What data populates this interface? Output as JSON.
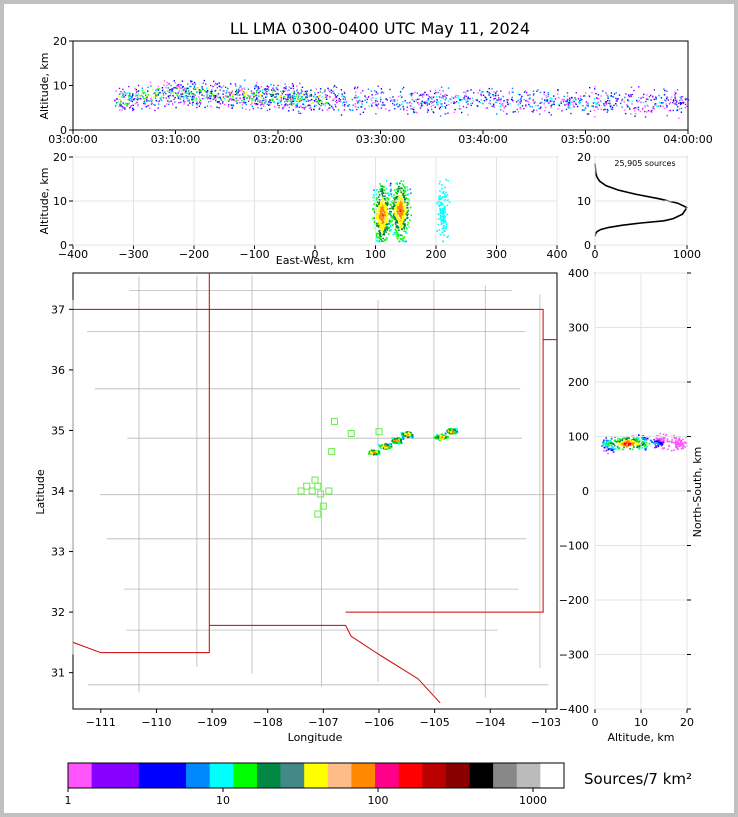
{
  "title": "LL LMA 0300-0400 UTC May 11, 2024",
  "source_count_label": "25,905 sources",
  "colorbar_label": "Sources/7 km²",
  "colorbar": {
    "tick_labels": [
      "1",
      "10",
      "100",
      "1000"
    ],
    "colors": [
      "#ff55ff",
      "#8800ff",
      "#8800ff",
      "#0000ff",
      "#0000ff",
      "#0088ff",
      "#00ffff",
      "#00ff00",
      "#008844",
      "#448888",
      "#ffff00",
      "#ffbb88",
      "#ff8800",
      "#ff0088",
      "#ff0000",
      "#bb0000",
      "#880000",
      "#000000",
      "#888888",
      "#bbbbbb",
      "#ffffff"
    ]
  },
  "chart_data": [
    {
      "id": "time_height",
      "type": "scatter",
      "xlabel": "",
      "ylabel": "Altitude, km",
      "xlim": [
        "03:00:00",
        "04:00:00"
      ],
      "ylim": [
        0,
        20
      ],
      "xtick_labels": [
        "03:00:00",
        "03:10:00",
        "03:20:00",
        "03:30:00",
        "03:40:00",
        "03:50:00",
        "04:00:00"
      ],
      "ytick_labels": [
        "0",
        "10",
        "20"
      ],
      "series": [
        {
          "x": [
            "03:04:00",
            "03:10:00",
            "03:15:00",
            "03:20:00",
            "03:25:00",
            "03:30:00",
            "03:35:00",
            "03:40:00",
            "03:45:00",
            "03:50:00",
            "03:55:00",
            "04:00:00"
          ],
          "y": [
            7,
            8.5,
            8,
            7.5,
            7,
            6.8,
            6.5,
            7,
            6.5,
            6.5,
            6.5,
            6.5
          ]
        }
      ]
    },
    {
      "id": "ew_height",
      "type": "scatter",
      "xlabel": "East-West, km",
      "ylabel": "Altitude, km",
      "xlim": [
        -400,
        400
      ],
      "ylim": [
        0,
        20
      ],
      "xtick_labels": [
        "−400",
        "−300",
        "−200",
        "−100",
        "0",
        "100",
        "200",
        "300",
        "400"
      ],
      "ytick_labels": [
        "0",
        "10",
        "20"
      ],
      "series": [
        {
          "name": "",
          "x": [
            110,
            140,
            210
          ],
          "y": [
            7,
            8,
            8
          ]
        }
      ]
    },
    {
      "id": "altitude_histogram",
      "type": "line",
      "xlabel": "",
      "ylabel": "",
      "xlim": [
        0,
        1000
      ],
      "ylim": [
        0,
        20
      ],
      "xtick_labels": [
        "0",
        "1000"
      ],
      "ytick_labels": [
        "0",
        "10",
        "20"
      ],
      "series": [
        {
          "x": [
            0,
            5,
            20,
            60,
            150,
            300,
            500,
            750,
            850,
            950,
            1000,
            900,
            700,
            450,
            250,
            120,
            50,
            20,
            8,
            3,
            0
          ],
          "y": [
            2,
            2.5,
            3,
            3.5,
            4,
            4.5,
            5,
            5.5,
            6,
            7,
            8.5,
            9.5,
            10.5,
            11.5,
            12.5,
            13.5,
            14.5,
            15.5,
            16.5,
            17.5,
            18.5
          ]
        }
      ]
    },
    {
      "id": "plan_view",
      "type": "scatter",
      "xlabel": "Longitude",
      "ylabel": "Latitude",
      "xlim": [
        -111.5,
        -102.8
      ],
      "ylim": [
        30.4,
        37.6
      ],
      "xtick_labels": [
        "−111",
        "−110",
        "−109",
        "−108",
        "−107",
        "−106",
        "−105",
        "−104",
        "−103"
      ],
      "ytick_labels": [
        "31",
        "32",
        "33",
        "34",
        "35",
        "36",
        "37"
      ],
      "series": [
        {
          "name": "",
          "x": [
            -106.1,
            -105.9,
            -105.7,
            -105.5,
            -104.9,
            -104.7
          ],
          "y": [
            34.65,
            34.75,
            34.85,
            34.95,
            34.9,
            35.0
          ]
        }
      ],
      "stations_lon": [
        -106.8,
        -106.5,
        -106.0,
        -106.85,
        -107.3,
        -107.15,
        -107.1,
        -107.05,
        -107.4,
        -107.2,
        -106.9,
        -107.0,
        -107.1
      ],
      "stations_lat": [
        35.15,
        34.95,
        34.98,
        34.65,
        34.08,
        34.18,
        34.08,
        33.95,
        34.0,
        34.0,
        34.0,
        33.75,
        33.62
      ]
    },
    {
      "id": "ns_height",
      "type": "scatter",
      "xlabel": "Altitude, km",
      "ylabel": "North-South, km",
      "xlim": [
        0,
        20
      ],
      "ylim": [
        -400,
        400
      ],
      "xtick_labels": [
        "0",
        "10",
        "20"
      ],
      "ytick_labels": [
        "−400",
        "−300",
        "−200",
        "−100",
        "0",
        "100",
        "200",
        "300",
        "400"
      ],
      "series": [
        {
          "name": "",
          "x": [
            3,
            6,
            8,
            10,
            14,
            18
          ],
          "y": [
            85,
            90,
            92,
            90,
            92,
            90
          ]
        }
      ]
    }
  ]
}
